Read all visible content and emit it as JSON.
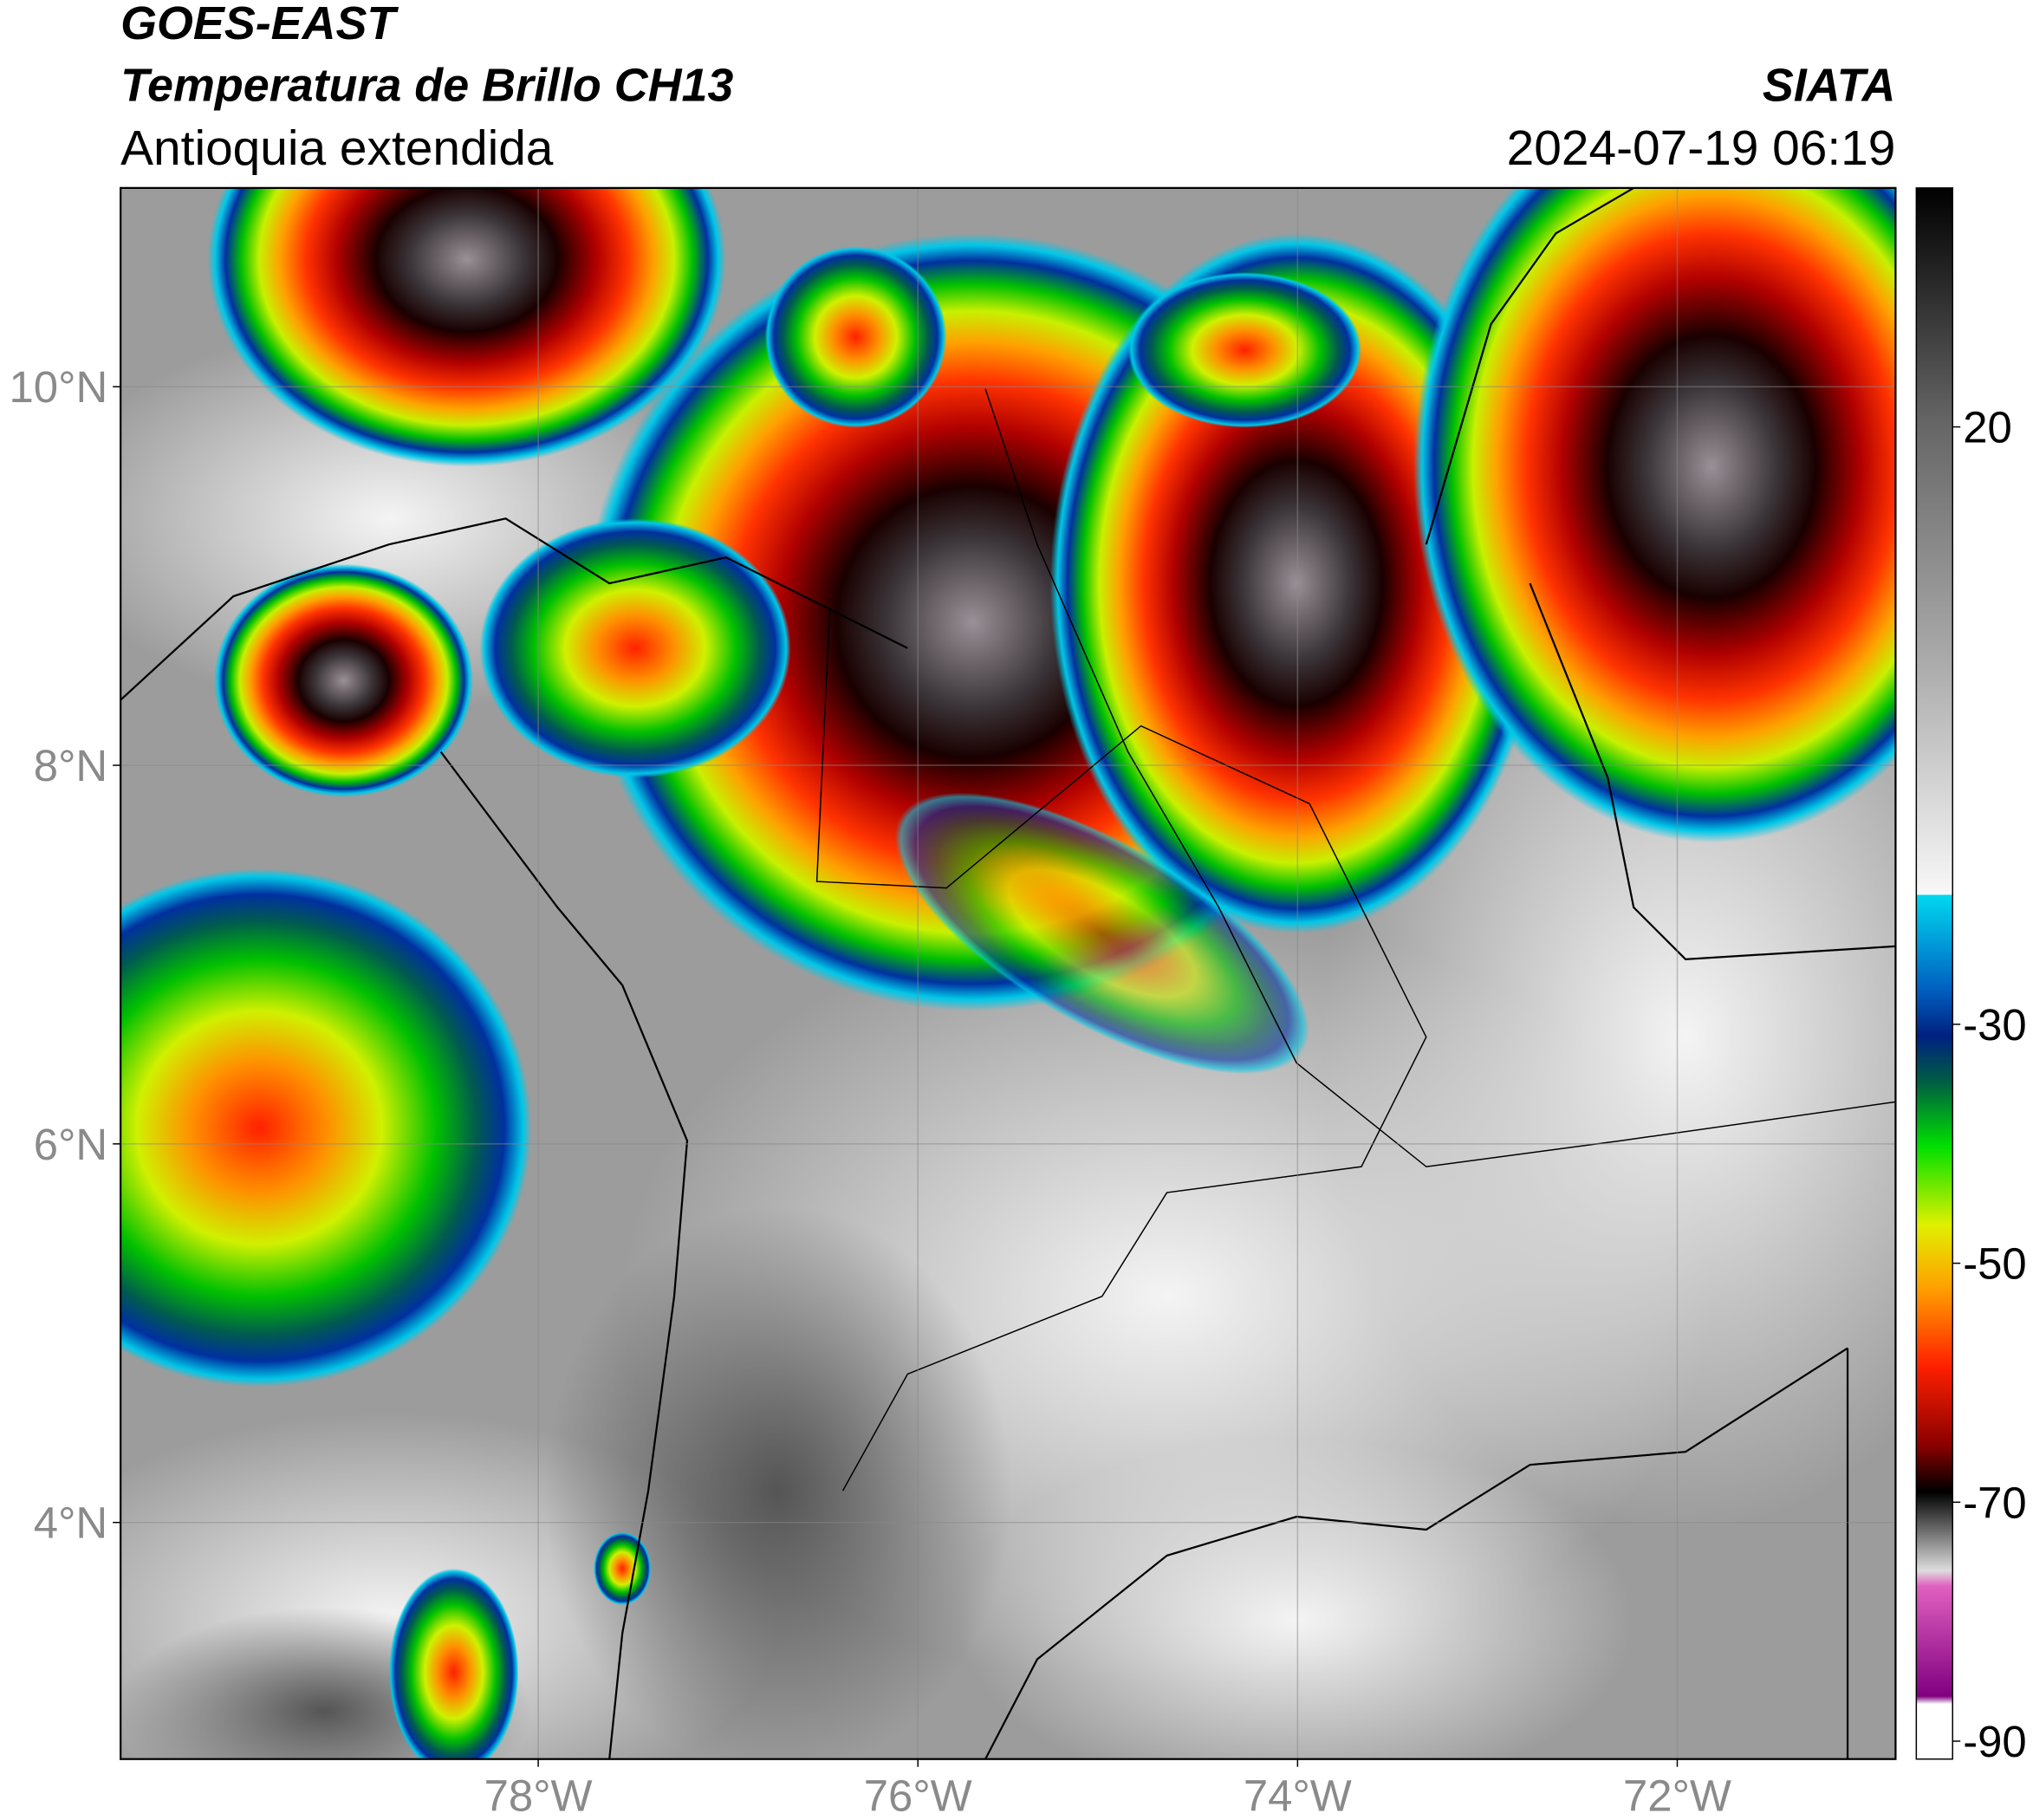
{
  "header": {
    "source": "GOES-EAST",
    "product": "Temperatura de Brillo CH13",
    "region": "Antioquia extendida",
    "agency": "SIATA",
    "datetime": "2024-07-19 06:19"
  },
  "map": {
    "xlim": [
      -80.2,
      -70.85
    ],
    "ylim": [
      2.75,
      11.05
    ],
    "lat_ticks": [
      {
        "value": 10,
        "label": "10°N"
      },
      {
        "value": 8,
        "label": "8°N"
      },
      {
        "value": 6,
        "label": "6°N"
      },
      {
        "value": 4,
        "label": "4°N"
      }
    ],
    "lon_ticks": [
      {
        "value": -78,
        "label": "78°W"
      },
      {
        "value": -76,
        "label": "76°W"
      },
      {
        "value": -74,
        "label": "74°W"
      },
      {
        "value": -72,
        "label": "72°W"
      }
    ]
  },
  "colorbar": {
    "lim": [
      -91.5,
      40
    ],
    "ticks": [
      20,
      -30,
      -50,
      -70,
      -90
    ]
  }
}
